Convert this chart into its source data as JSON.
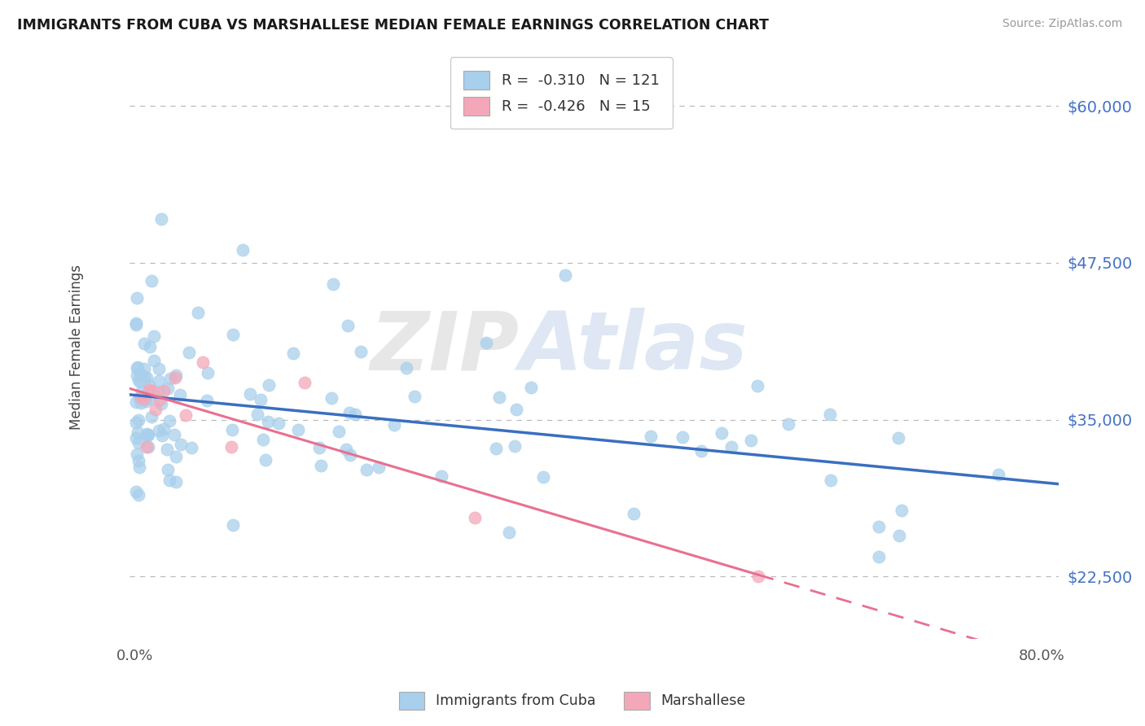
{
  "title": "IMMIGRANTS FROM CUBA VS MARSHALLESE MEDIAN FEMALE EARNINGS CORRELATION CHART",
  "source": "Source: ZipAtlas.com",
  "ylabel": "Median Female Earnings",
  "xlim": [
    -0.005,
    0.815
  ],
  "ylim": [
    17500,
    64000
  ],
  "ytick_vals": [
    22500,
    35000,
    47500,
    60000
  ],
  "ytick_labels": [
    "$22,500",
    "$35,000",
    "$47,500",
    "$60,000"
  ],
  "xtick_vals": [
    0.0,
    0.2,
    0.4,
    0.6,
    0.8
  ],
  "xtick_labels": [
    "0.0%",
    "",
    "",
    "",
    "80.0%"
  ],
  "color_cuba": "#A8CFEC",
  "color_marsh": "#F4A7B9",
  "color_cuba_line": "#3A6FBF",
  "color_marsh_line": "#E87090",
  "color_ytick": "#4472C4",
  "r_cuba": -0.31,
  "n_cuba": 121,
  "r_marsh": -0.426,
  "n_marsh": 15,
  "cuba_intercept": 36500,
  "cuba_slope": -8000,
  "marsh_intercept": 37000,
  "marsh_slope": -18000
}
